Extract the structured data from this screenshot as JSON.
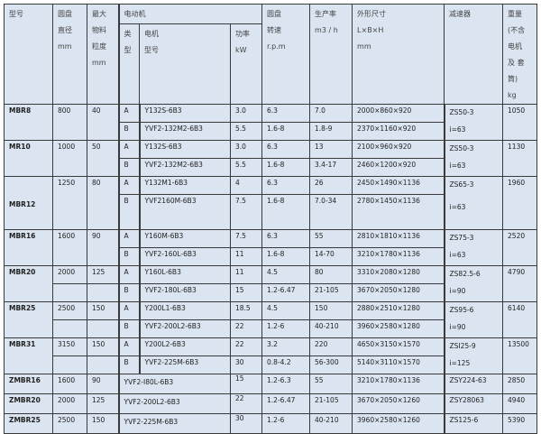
{
  "header": {
    "model": "型号",
    "diameter": "圆盘\n直径\nmm",
    "max_size": "最大\n物料\n粒度\nmm",
    "motor": "电动机",
    "motor_type": "类\n型",
    "motor_model": "电机\n型号",
    "power": "功率\nkW",
    "speed": "圆盘\n转速\nr.p.m",
    "capacity": "生产率\nm3 / h",
    "dimensions": "外形尺寸\nL×B×H\nmm",
    "reducer": "减速器",
    "weight": "重量\n(不含\n电机\n及 套\n筒)\nkg"
  },
  "rows": [
    {
      "model": "MBR8",
      "diameter": "800",
      "max_size": "40",
      "split": false,
      "tall": false,
      "reducer": [
        "ZS50-3",
        "i=63"
      ],
      "weight": "1050",
      "motors": [
        {
          "type": "A",
          "model": "Y132S-6B3",
          "power": "3.0",
          "speed": "6.3",
          "capacity": "7.0",
          "dims": "2000×860×920"
        },
        {
          "type": "B",
          "model": "YVF2-132M2-6B3",
          "power": "5.5",
          "speed": "1.6-8",
          "capacity": "1.8-9",
          "dims": "2370×1160×920"
        }
      ]
    },
    {
      "model": "MR10",
      "diameter": "1000",
      "max_size": "50",
      "split": false,
      "tall": false,
      "reducer": [
        "ZS50-3",
        "i=63"
      ],
      "weight": "1130",
      "motors": [
        {
          "type": "A",
          "model": "Y132S-6B3",
          "power": "3.0",
          "speed": "6.3",
          "capacity": "13",
          "dims": "2100×960×920"
        },
        {
          "type": "B",
          "model": "YVF2-132M2-6B3",
          "power": "5.5",
          "speed": "1.6-8",
          "capacity": "3.4-17",
          "dims": "2460×1200×920"
        }
      ]
    },
    {
      "model": "MBR12",
      "diameter": "1250",
      "max_size": "80",
      "split": false,
      "tall": true,
      "reducer": [
        "ZS65-3",
        "i=63"
      ],
      "weight": "1960",
      "motors": [
        {
          "type": "A",
          "model": "Y132M1-6B3",
          "power": "4",
          "speed": "6.3",
          "capacity": "26",
          "dims": "2450×1490×1136"
        },
        {
          "type": "B",
          "model": "YVF2160M-6B3",
          "power": "7.5",
          "speed": "1.6-8",
          "capacity": "7.0-34",
          "dims": "2780×1450×1136"
        }
      ]
    },
    {
      "model": "MBR16",
      "diameter": "1600",
      "max_size": "90",
      "split": false,
      "tall": false,
      "reducer": [
        "ZS75-3",
        "i=63"
      ],
      "weight": "2520",
      "motors": [
        {
          "type": "A",
          "model": "Y160M-6B3",
          "power": "7.5",
          "speed": "6.3",
          "capacity": "55",
          "dims": "2810×1810×1136"
        },
        {
          "type": "B",
          "model": "YVF2-160L-6B3",
          "power": "11",
          "speed": "1.6-8",
          "capacity": "14-70",
          "dims": "3210×1780×1136"
        }
      ]
    },
    {
      "model": "MBR20",
      "diameter": "2000",
      "max_size": "125",
      "split": true,
      "tall": false,
      "reducer": [
        "ZS82.5-6",
        "i=90"
      ],
      "weight": "4790",
      "motors": [
        {
          "type": "A",
          "model": "Y160L-6B3",
          "power": "11",
          "speed": "4.5",
          "capacity": "80",
          "dims": "3310×2080×1280"
        },
        {
          "type": "B",
          "model": "YVF2-180L-6B3",
          "power": "15",
          "speed": "1.2-6.47",
          "capacity": "21-105",
          "dims": "3670×2050×1280"
        }
      ]
    },
    {
      "model": "MBR25",
      "diameter": "2500",
      "max_size": "150",
      "split": true,
      "tall": false,
      "reducer": [
        "ZS95-6",
        "i=90"
      ],
      "weight": "6140",
      "motors": [
        {
          "type": "A",
          "model": "Y200L1-6B3",
          "power": "18.5",
          "speed": "4.5",
          "capacity": "150",
          "dims": "2880×2510×1280"
        },
        {
          "type": "B",
          "model": "YVF2-200L2-6B3",
          "power": "22",
          "speed": "1.2-6",
          "capacity": "40-210",
          "dims": "3960×2580×1280"
        }
      ]
    },
    {
      "model": "MBR31",
      "diameter": "3150",
      "max_size": "150",
      "split": true,
      "tall": false,
      "reducer": [
        "ZSI25-9",
        "i=125"
      ],
      "weight": "13500",
      "motors": [
        {
          "type": "A",
          "model": "Y200L2-6B3",
          "power": "22",
          "speed": "3.2",
          "capacity": "220",
          "dims": "4650×3150×1570"
        },
        {
          "type": "B",
          "model": "YVF2-225M-6B3",
          "power": "30",
          "speed": "0.8-4.2",
          "capacity": "56-300",
          "dims": "5140×3110×1570"
        }
      ]
    }
  ],
  "single_rows": [
    {
      "model": "ZMBR16",
      "diameter": "1600",
      "max_size": "90",
      "motor_model": "YVF2-I80L-6B3",
      "power": "15",
      "speed": "1.2-6.3",
      "capacity": "55",
      "dims": "3210×1780×1136",
      "reducer": "ZSY224-63",
      "weight": "2850"
    },
    {
      "model": "ZMBR20",
      "diameter": "2000",
      "max_size": "125",
      "motor_model": "YVF2-200L2-6B3",
      "power": "22",
      "speed": "1.2-6.47",
      "capacity": "21-105",
      "dims": "3670×2050×1260",
      "reducer": "ZSY28063",
      "weight": "4940"
    },
    {
      "model": "ZMBR25",
      "diameter": "2500",
      "max_size": "150",
      "motor_model": "YVF2-225M-6B3",
      "power": "30",
      "speed": "1.2-6",
      "capacity": "40-210",
      "dims": "3960×2580×1260",
      "reducer": "ZS125-6",
      "weight": "5390"
    }
  ],
  "colors": {
    "cell_bg": "#dbe5f1",
    "border": "#3a3a3a"
  }
}
